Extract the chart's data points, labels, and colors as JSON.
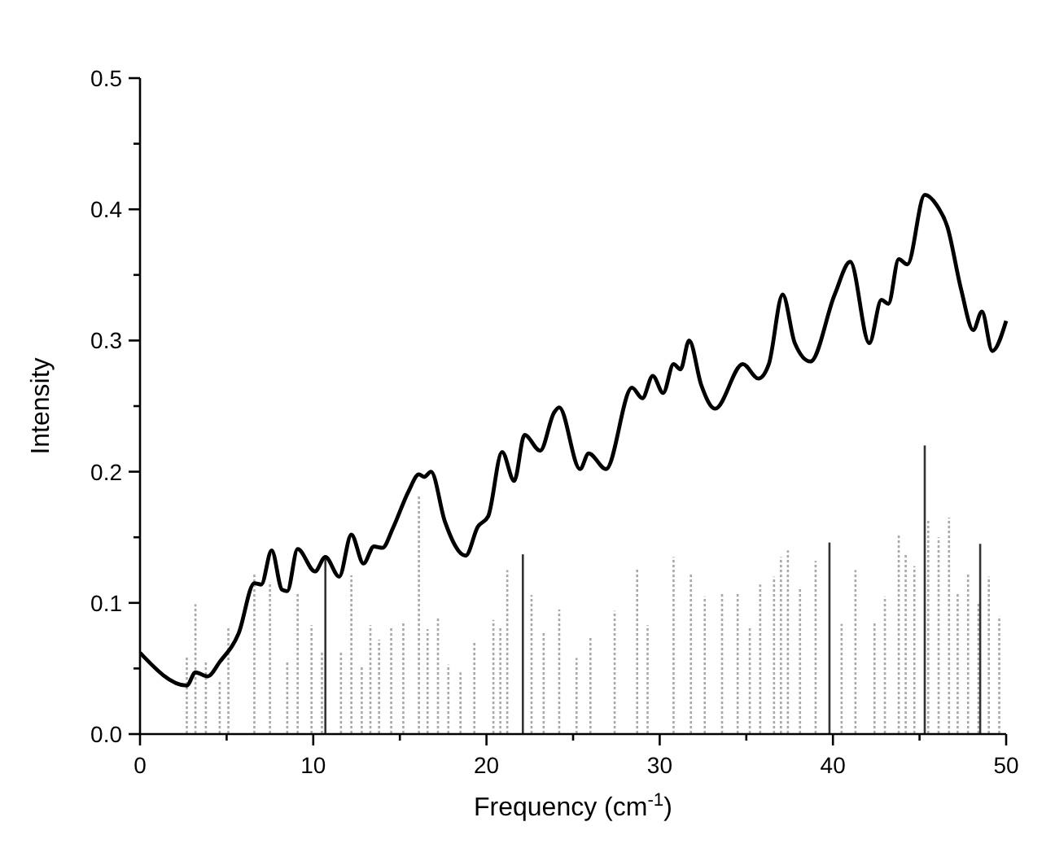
{
  "chart_data": {
    "type": "line",
    "xlabel": "Frequency (cm$^{-1}$)",
    "ylabel": "Intensity",
    "xlim": [
      0,
      50
    ],
    "xticks": [
      0,
      {
        "value": 5,
        "label": null
      },
      10,
      {
        "value": 15,
        "label": null
      },
      20,
      {
        "value": 25,
        "label": null
      },
      30,
      {
        "value": 35,
        "label": null
      },
      40,
      {
        "value": 45,
        "label": null
      },
      50
    ],
    "ylim": [
      0,
      0.5
    ],
    "yticks": [
      {
        "value": 0,
        "label": "0.0"
      },
      {
        "value": 0.05,
        "label": null
      },
      0.1,
      {
        "value": 0.15,
        "label": null
      },
      0.2,
      {
        "value": 0.25,
        "label": null
      },
      0.3,
      {
        "value": 0.35,
        "label": null
      },
      0.4,
      {
        "value": 0.45,
        "label": null
      },
      0.5
    ],
    "series": [
      {
        "type": "bar",
        "line_style": "dotted",
        "color": "#a8a8a8",
        "x": [
          2.7,
          3.2,
          3.8,
          4.6,
          5.1,
          6.6,
          7.5,
          8.5,
          9.1,
          9.9,
          10.5,
          11.6,
          12.2,
          12.8,
          13.3,
          13.8,
          14.5,
          15.2,
          16.1,
          16.6,
          17.2,
          17.8,
          18.5,
          19.3,
          20.4,
          20.8,
          21.2,
          22.6,
          23.3,
          24.2,
          25.2,
          26.0,
          27.4,
          28.7,
          29.3,
          30.8,
          31.8,
          32.6,
          33.6,
          34.5,
          35.2,
          35.8,
          36.6,
          37.0,
          37.4,
          38.1,
          39.0,
          40.5,
          41.3,
          42.4,
          43.0,
          43.8,
          44.2,
          44.7,
          45.5,
          46.1,
          46.7,
          47.2,
          47.8,
          48.4,
          49.0,
          49.6
        ],
        "values": [
          0.059,
          0.099,
          0.056,
          0.04,
          0.082,
          0.122,
          0.116,
          0.056,
          0.108,
          0.083,
          0.063,
          0.062,
          0.121,
          0.052,
          0.083,
          0.072,
          0.082,
          0.086,
          0.182,
          0.08,
          0.089,
          0.053,
          0.047,
          0.071,
          0.087,
          0.081,
          0.125,
          0.106,
          0.078,
          0.095,
          0.058,
          0.074,
          0.094,
          0.126,
          0.083,
          0.135,
          0.122,
          0.105,
          0.108,
          0.107,
          0.082,
          0.114,
          0.12,
          0.135,
          0.14,
          0.112,
          0.132,
          0.084,
          0.125,
          0.085,
          0.105,
          0.152,
          0.138,
          0.128,
          0.163,
          0.15,
          0.165,
          0.107,
          0.122,
          0.1,
          0.12,
          0.09
        ]
      },
      {
        "type": "bar",
        "color": "#333333",
        "x": [
          10.7,
          22.1,
          39.8,
          45.3,
          48.5
        ],
        "values": [
          0.136,
          0.137,
          0.146,
          0.22,
          0.145
        ]
      },
      {
        "color": "#000000",
        "x": [
          0,
          2.7,
          3.2,
          3.9,
          4.6,
          5.7,
          6.6,
          7.0,
          7.6,
          8.2,
          8.5,
          9.1,
          10.1,
          10.7,
          11.5,
          12.2,
          12.9,
          13.5,
          14.0,
          14.6,
          15.5,
          16.1,
          16.4,
          16.8,
          17.6,
          18.8,
          19.5,
          20.1,
          20.9,
          21.6,
          22.2,
          23.1,
          23.9,
          24.2,
          25.4,
          25.9,
          26.9,
          28.4,
          29.0,
          29.6,
          30.2,
          30.8,
          31.2,
          31.7,
          32.4,
          33.2,
          34.8,
          35.7,
          36.3,
          37.1,
          37.8,
          38.7,
          40.1,
          41.0,
          42.1,
          42.8,
          43.2,
          43.8,
          44.3,
          45.3,
          46.0,
          46.6,
          47.4,
          48.1,
          48.6,
          49.2,
          50.0
        ],
        "values": [
          0.062,
          0.037,
          0.047,
          0.044,
          0.055,
          0.077,
          0.115,
          0.114,
          0.14,
          0.11,
          0.109,
          0.141,
          0.124,
          0.135,
          0.12,
          0.152,
          0.13,
          0.143,
          0.142,
          0.157,
          0.185,
          0.198,
          0.196,
          0.2,
          0.162,
          0.136,
          0.158,
          0.166,
          0.215,
          0.193,
          0.228,
          0.216,
          0.245,
          0.249,
          0.202,
          0.214,
          0.202,
          0.264,
          0.256,
          0.273,
          0.26,
          0.282,
          0.278,
          0.3,
          0.266,
          0.248,
          0.282,
          0.271,
          0.282,
          0.335,
          0.298,
          0.284,
          0.335,
          0.36,
          0.298,
          0.331,
          0.328,
          0.362,
          0.358,
          0.411,
          0.403,
          0.387,
          0.339,
          0.308,
          0.322,
          0.292,
          0.315
        ]
      }
    ]
  }
}
